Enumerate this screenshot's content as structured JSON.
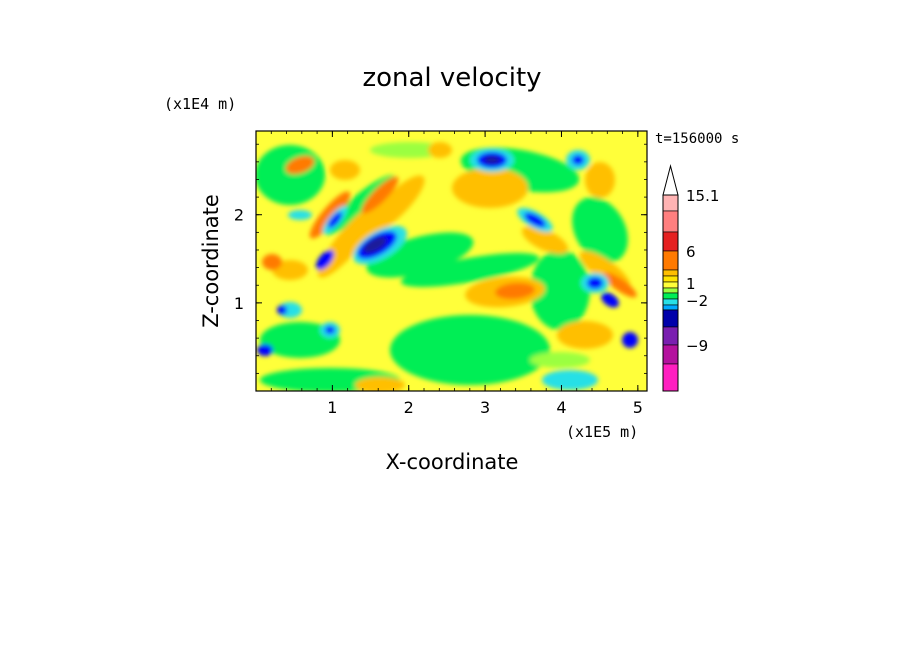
{
  "chart_data": {
    "type": "heatmap",
    "title": "zonal velocity",
    "xlabel": "X-coordinate",
    "ylabel": "Z-coordinate",
    "x_scale_note": "(x1E5 m)",
    "y_scale_note": "(x1E4 m)",
    "time_label": "t=156000 s",
    "xlim": [
      0,
      5.12
    ],
    "ylim": [
      0,
      2.95
    ],
    "x_ticks": [
      "1",
      "2",
      "3",
      "4",
      "5"
    ],
    "y_ticks": [
      "1",
      "2"
    ],
    "colorbar": {
      "levels": [
        "15.1",
        "6",
        "1",
        "-2",
        "-9"
      ],
      "colors": [
        "#ffffff",
        "#ffb3b3",
        "#ff7f7f",
        "#e52020",
        "#ff7a00",
        "#ffbf00",
        "#ffe400",
        "#ffff3a",
        "#9bff40",
        "#00ee55",
        "#28e0e6",
        "#00aaff",
        "#0000ff",
        "#1a1a99",
        "#6a0fa0",
        "#b4119e",
        "#ff1fc0"
      ]
    },
    "features": [
      {
        "type": "max",
        "x": 1.6,
        "z": 1.65,
        "value": -9
      },
      {
        "type": "max",
        "x": 3.1,
        "z": 2.65,
        "value": -9
      },
      {
        "type": "max",
        "x": 4.4,
        "z": 1.3,
        "value": -9
      },
      {
        "type": "max",
        "x": 3.1,
        "z": 2.3,
        "value": 6
      },
      {
        "type": "max",
        "x": 3.3,
        "z": 1.15,
        "value": 6
      },
      {
        "type": "max",
        "x": 1.2,
        "z": 1.6,
        "value": 6
      },
      {
        "type": "max",
        "x": 4.6,
        "z": 1.5,
        "value": 6
      }
    ]
  }
}
